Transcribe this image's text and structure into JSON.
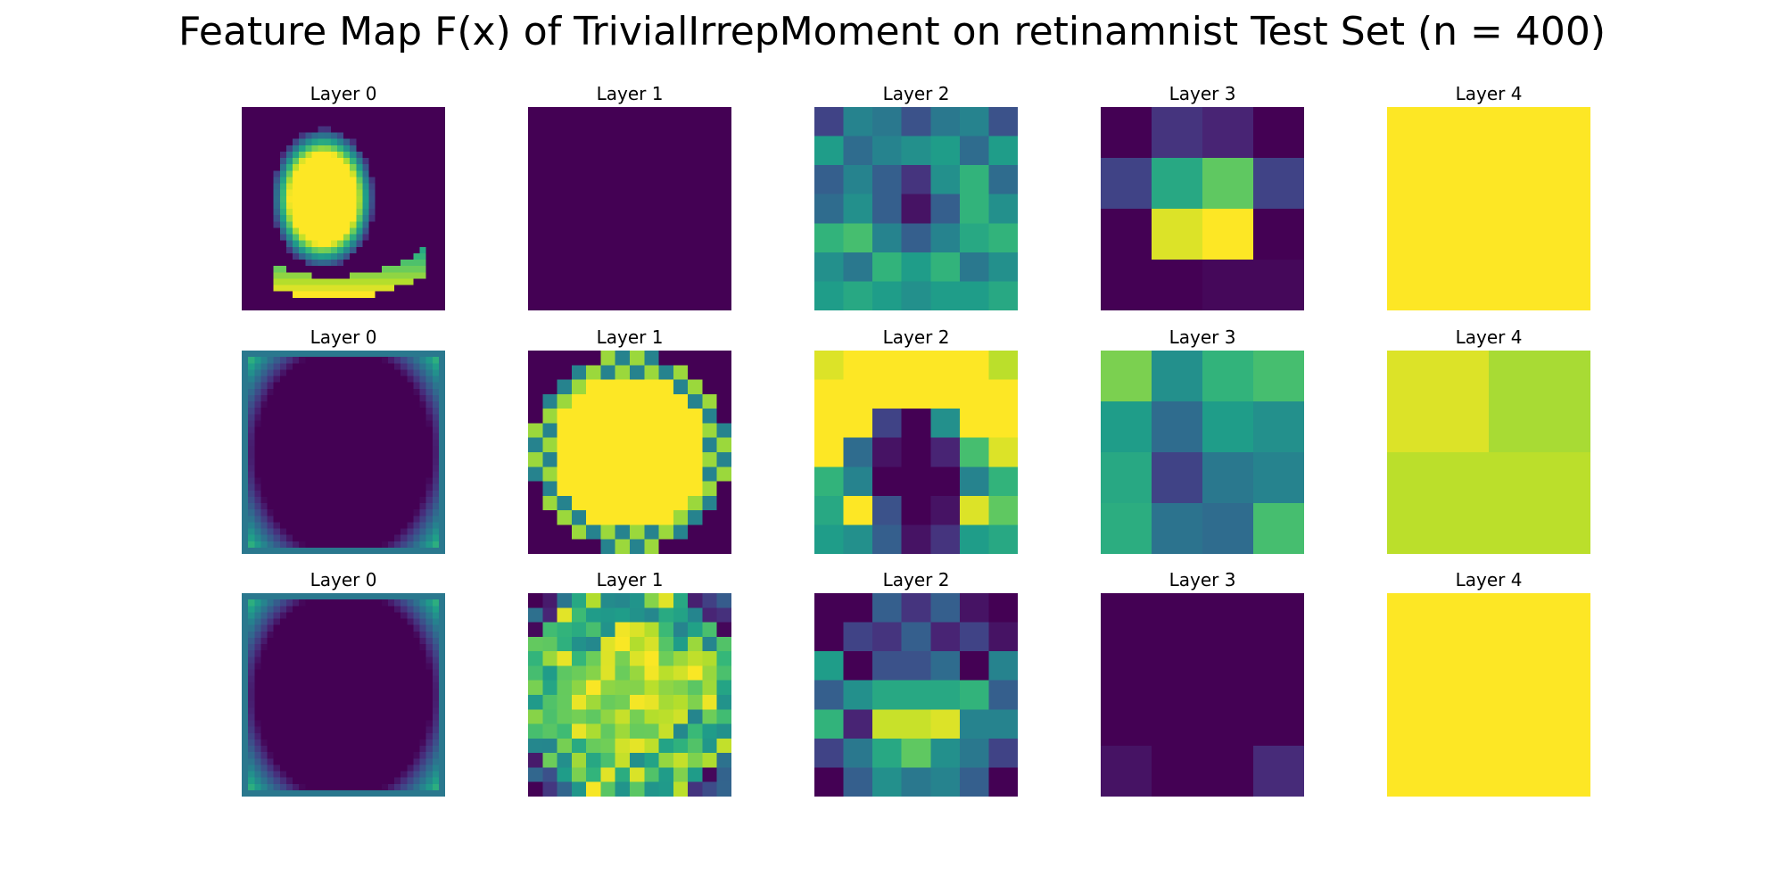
{
  "title": "Feature Map F(x) of TrivialIrrepMoment on retinamnist Test Set (n = 400)",
  "chart_data": {
    "type": "heatmap",
    "colormap": "viridis",
    "grid": false,
    "rows": [
      {
        "panels": [
          {
            "title": "Layer 0",
            "generator": "cup_blob",
            "size": 32
          },
          {
            "title": "Layer 1",
            "generator": "flat",
            "value": 0.0,
            "size": 1
          },
          {
            "title": "Layer 2",
            "size": 7,
            "values": [
              [
                0.2,
                0.45,
                0.4,
                0.25,
                0.4,
                0.45,
                0.25
              ],
              [
                0.55,
                0.35,
                0.45,
                0.5,
                0.55,
                0.35,
                0.55
              ],
              [
                0.3,
                0.45,
                0.3,
                0.15,
                0.5,
                0.65,
                0.35
              ],
              [
                0.35,
                0.5,
                0.3,
                0.05,
                0.3,
                0.65,
                0.5
              ],
              [
                0.65,
                0.7,
                0.45,
                0.3,
                0.45,
                0.6,
                0.65
              ],
              [
                0.5,
                0.4,
                0.65,
                0.55,
                0.65,
                0.4,
                0.5
              ],
              [
                0.55,
                0.6,
                0.55,
                0.5,
                0.55,
                0.55,
                0.6
              ]
            ]
          },
          {
            "title": "Layer 3",
            "size": 4,
            "values": [
              [
                0.0,
                0.15,
                0.1,
                0.0
              ],
              [
                0.2,
                0.6,
                0.75,
                0.2
              ],
              [
                0.0,
                0.95,
                1.0,
                0.0
              ],
              [
                0.0,
                0.0,
                0.02,
                0.02
              ]
            ]
          },
          {
            "title": "Layer 4",
            "generator": "flat",
            "value": 1.0,
            "size": 1
          }
        ]
      },
      {
        "panels": [
          {
            "title": "Layer 0",
            "generator": "ring_corners",
            "size": 32
          },
          {
            "title": "Layer 1",
            "generator": "disk",
            "size": 14
          },
          {
            "title": "Layer 2",
            "size": 7,
            "values": [
              [
                0.95,
                1.0,
                1.0,
                1.0,
                1.0,
                1.0,
                0.9
              ],
              [
                1.0,
                1.0,
                1.0,
                1.0,
                1.0,
                1.0,
                1.0
              ],
              [
                1.0,
                1.0,
                0.2,
                0.0,
                0.5,
                1.0,
                1.0
              ],
              [
                1.0,
                0.35,
                0.05,
                0.0,
                0.1,
                0.7,
                0.95
              ],
              [
                0.65,
                0.45,
                0.0,
                0.0,
                0.0,
                0.45,
                0.65
              ],
              [
                0.6,
                1.0,
                0.25,
                0.0,
                0.05,
                0.95,
                0.75
              ],
              [
                0.55,
                0.5,
                0.3,
                0.05,
                0.15,
                0.55,
                0.6
              ]
            ]
          },
          {
            "title": "Layer 3",
            "size": 4,
            "values": [
              [
                0.8,
                0.5,
                0.65,
                0.7
              ],
              [
                0.55,
                0.35,
                0.55,
                0.5
              ],
              [
                0.6,
                0.2,
                0.4,
                0.45
              ],
              [
                0.62,
                0.38,
                0.35,
                0.7
              ]
            ]
          },
          {
            "title": "Layer 4",
            "size": 2,
            "values": [
              [
                0.95,
                0.87
              ],
              [
                0.9,
                0.9
              ]
            ]
          }
        ]
      },
      {
        "panels": [
          {
            "title": "Layer 0",
            "generator": "ring_corners",
            "size": 32
          },
          {
            "title": "Layer 1",
            "generator": "noisy_disk",
            "size": 14
          },
          {
            "title": "Layer 2",
            "size": 7,
            "values": [
              [
                0.0,
                0.0,
                0.3,
                0.15,
                0.3,
                0.05,
                0.0
              ],
              [
                0.0,
                0.2,
                0.15,
                0.3,
                0.1,
                0.2,
                0.05
              ],
              [
                0.55,
                0.0,
                0.25,
                0.25,
                0.35,
                0.0,
                0.45
              ],
              [
                0.3,
                0.5,
                0.6,
                0.6,
                0.6,
                0.65,
                0.3
              ],
              [
                0.65,
                0.1,
                0.92,
                0.92,
                0.95,
                0.45,
                0.45
              ],
              [
                0.2,
                0.4,
                0.6,
                0.75,
                0.5,
                0.4,
                0.2
              ],
              [
                0.0,
                0.3,
                0.5,
                0.4,
                0.45,
                0.3,
                0.0
              ]
            ]
          },
          {
            "title": "Layer 3",
            "size": 4,
            "values": [
              [
                0.0,
                0.0,
                0.0,
                0.0
              ],
              [
                0.0,
                0.0,
                0.0,
                0.0
              ],
              [
                0.0,
                0.0,
                0.0,
                0.0
              ],
              [
                0.05,
                0.0,
                0.0,
                0.12
              ]
            ]
          },
          {
            "title": "Layer 4",
            "generator": "flat",
            "value": 1.0,
            "size": 1
          }
        ]
      }
    ]
  }
}
